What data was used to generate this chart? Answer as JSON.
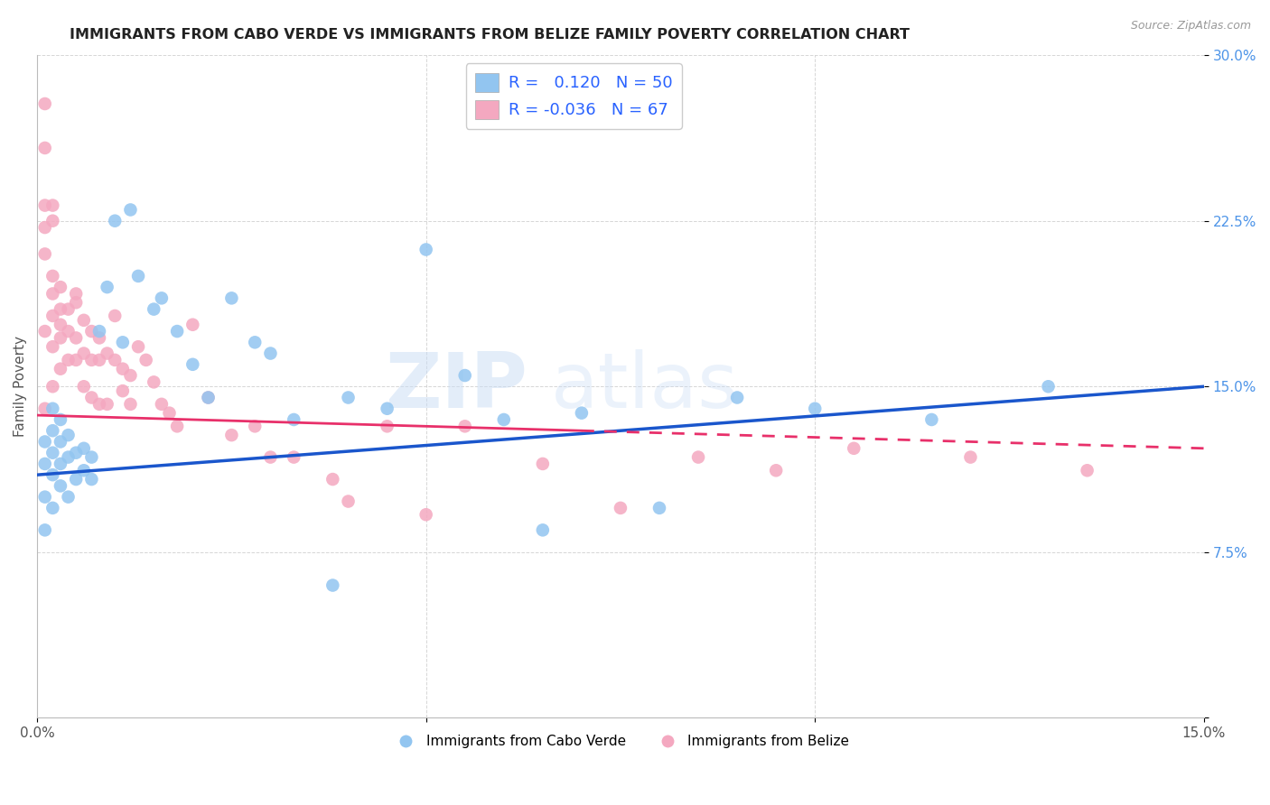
{
  "title": "IMMIGRANTS FROM CABO VERDE VS IMMIGRANTS FROM BELIZE FAMILY POVERTY CORRELATION CHART",
  "source": "Source: ZipAtlas.com",
  "ylabel": "Family Poverty",
  "xlim": [
    0.0,
    0.15
  ],
  "ylim": [
    0.0,
    0.3
  ],
  "ytick_positions": [
    0.0,
    0.075,
    0.15,
    0.225,
    0.3
  ],
  "ytick_labels": [
    "",
    "7.5%",
    "15.0%",
    "22.5%",
    "30.0%"
  ],
  "cabo_verde_color": "#92c5f0",
  "belize_color": "#f4a8c0",
  "cabo_verde_line_color": "#1a56cc",
  "belize_line_color": "#e8306a",
  "cabo_verde_R": 0.12,
  "cabo_verde_N": 50,
  "belize_R": -0.036,
  "belize_N": 67,
  "legend_label_cabo": "Immigrants from Cabo Verde",
  "legend_label_belize": "Immigrants from Belize",
  "watermark_zip": "ZIP",
  "watermark_atlas": "atlas",
  "cabo_verde_x": [
    0.001,
    0.001,
    0.001,
    0.001,
    0.002,
    0.002,
    0.002,
    0.002,
    0.002,
    0.003,
    0.003,
    0.003,
    0.003,
    0.004,
    0.004,
    0.004,
    0.005,
    0.005,
    0.006,
    0.006,
    0.007,
    0.007,
    0.008,
    0.009,
    0.01,
    0.011,
    0.012,
    0.013,
    0.015,
    0.016,
    0.018,
    0.02,
    0.022,
    0.025,
    0.028,
    0.03,
    0.033,
    0.038,
    0.04,
    0.045,
    0.05,
    0.055,
    0.06,
    0.065,
    0.07,
    0.08,
    0.09,
    0.1,
    0.115,
    0.13
  ],
  "cabo_verde_y": [
    0.085,
    0.1,
    0.115,
    0.125,
    0.095,
    0.11,
    0.12,
    0.13,
    0.14,
    0.105,
    0.115,
    0.125,
    0.135,
    0.1,
    0.118,
    0.128,
    0.108,
    0.12,
    0.112,
    0.122,
    0.108,
    0.118,
    0.175,
    0.195,
    0.225,
    0.17,
    0.23,
    0.2,
    0.185,
    0.19,
    0.175,
    0.16,
    0.145,
    0.19,
    0.17,
    0.165,
    0.135,
    0.06,
    0.145,
    0.14,
    0.212,
    0.155,
    0.135,
    0.085,
    0.138,
    0.095,
    0.145,
    0.14,
    0.135,
    0.15
  ],
  "belize_x": [
    0.001,
    0.001,
    0.001,
    0.001,
    0.001,
    0.001,
    0.001,
    0.002,
    0.002,
    0.002,
    0.002,
    0.002,
    0.002,
    0.002,
    0.003,
    0.003,
    0.003,
    0.003,
    0.003,
    0.004,
    0.004,
    0.004,
    0.005,
    0.005,
    0.005,
    0.005,
    0.006,
    0.006,
    0.006,
    0.007,
    0.007,
    0.007,
    0.008,
    0.008,
    0.008,
    0.009,
    0.009,
    0.01,
    0.01,
    0.011,
    0.011,
    0.012,
    0.012,
    0.013,
    0.014,
    0.015,
    0.016,
    0.017,
    0.018,
    0.02,
    0.022,
    0.025,
    0.028,
    0.03,
    0.033,
    0.038,
    0.04,
    0.045,
    0.05,
    0.055,
    0.065,
    0.075,
    0.085,
    0.095,
    0.105,
    0.12,
    0.135
  ],
  "belize_y": [
    0.278,
    0.258,
    0.232,
    0.222,
    0.21,
    0.175,
    0.14,
    0.232,
    0.225,
    0.2,
    0.192,
    0.182,
    0.168,
    0.15,
    0.195,
    0.185,
    0.178,
    0.172,
    0.158,
    0.185,
    0.175,
    0.162,
    0.192,
    0.188,
    0.172,
    0.162,
    0.18,
    0.165,
    0.15,
    0.175,
    0.162,
    0.145,
    0.172,
    0.162,
    0.142,
    0.165,
    0.142,
    0.182,
    0.162,
    0.158,
    0.148,
    0.155,
    0.142,
    0.168,
    0.162,
    0.152,
    0.142,
    0.138,
    0.132,
    0.178,
    0.145,
    0.128,
    0.132,
    0.118,
    0.118,
    0.108,
    0.098,
    0.132,
    0.092,
    0.132,
    0.115,
    0.095,
    0.118,
    0.112,
    0.122,
    0.118,
    0.112
  ]
}
